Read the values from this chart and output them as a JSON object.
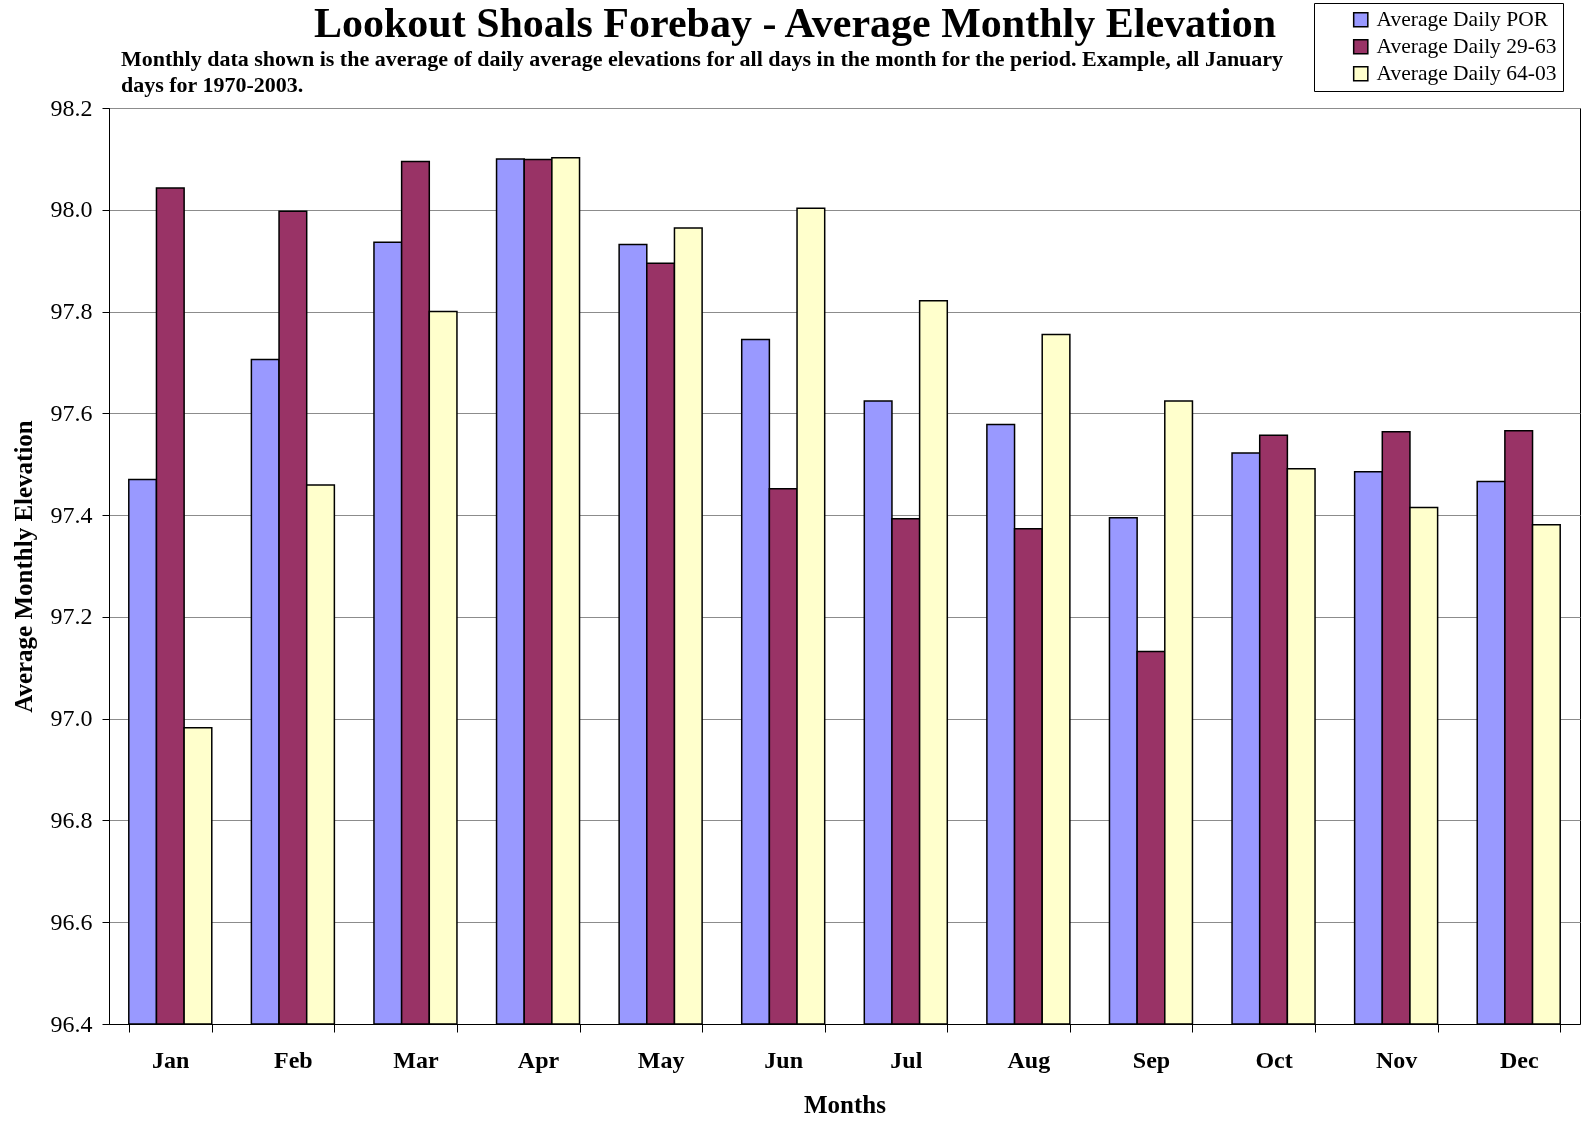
{
  "chart_data": {
    "type": "bar",
    "title": "Lookout Shoals Forebay - Average Monthly Elevation",
    "subtitle": "Monthly data shown is the average of daily average elevations for all days in the month for the period.  Example, all January days for 1970-2003.",
    "xlabel": "Months",
    "ylabel": "Average Monthly Elevation",
    "categories": [
      "Jan",
      "Feb",
      "Mar",
      "Apr",
      "May",
      "Jun",
      "Jul",
      "Aug",
      "Sep",
      "Oct",
      "Nov",
      "Dec"
    ],
    "series": [
      {
        "name": "Average Daily POR",
        "color": "#9999ff",
        "values": [
          97.47,
          97.706,
          97.936,
          98.1,
          97.932,
          97.745,
          97.624,
          97.578,
          97.395,
          97.522,
          97.485,
          97.466
        ]
      },
      {
        "name": "Average Daily 29-63",
        "color": "#993366",
        "values": [
          98.043,
          97.997,
          98.095,
          98.099,
          97.895,
          97.452,
          97.393,
          97.373,
          97.132,
          97.557,
          97.564,
          97.566
        ]
      },
      {
        "name": "Average Daily 64-03",
        "color": "#ffffcc",
        "values": [
          96.982,
          97.459,
          97.8,
          98.102,
          97.964,
          98.003,
          97.821,
          97.755,
          97.624,
          97.491,
          97.415,
          97.381
        ]
      }
    ],
    "ylim": [
      96.4,
      98.2
    ],
    "yticks": [
      96.4,
      96.6,
      96.8,
      {
        "value": 97,
        "label": "97.0"
      },
      97.2,
      97.4,
      97.6,
      97.8,
      {
        "value": 98,
        "label": "98.0"
      },
      98.2
    ],
    "grid": "y",
    "legend": "top right"
  }
}
